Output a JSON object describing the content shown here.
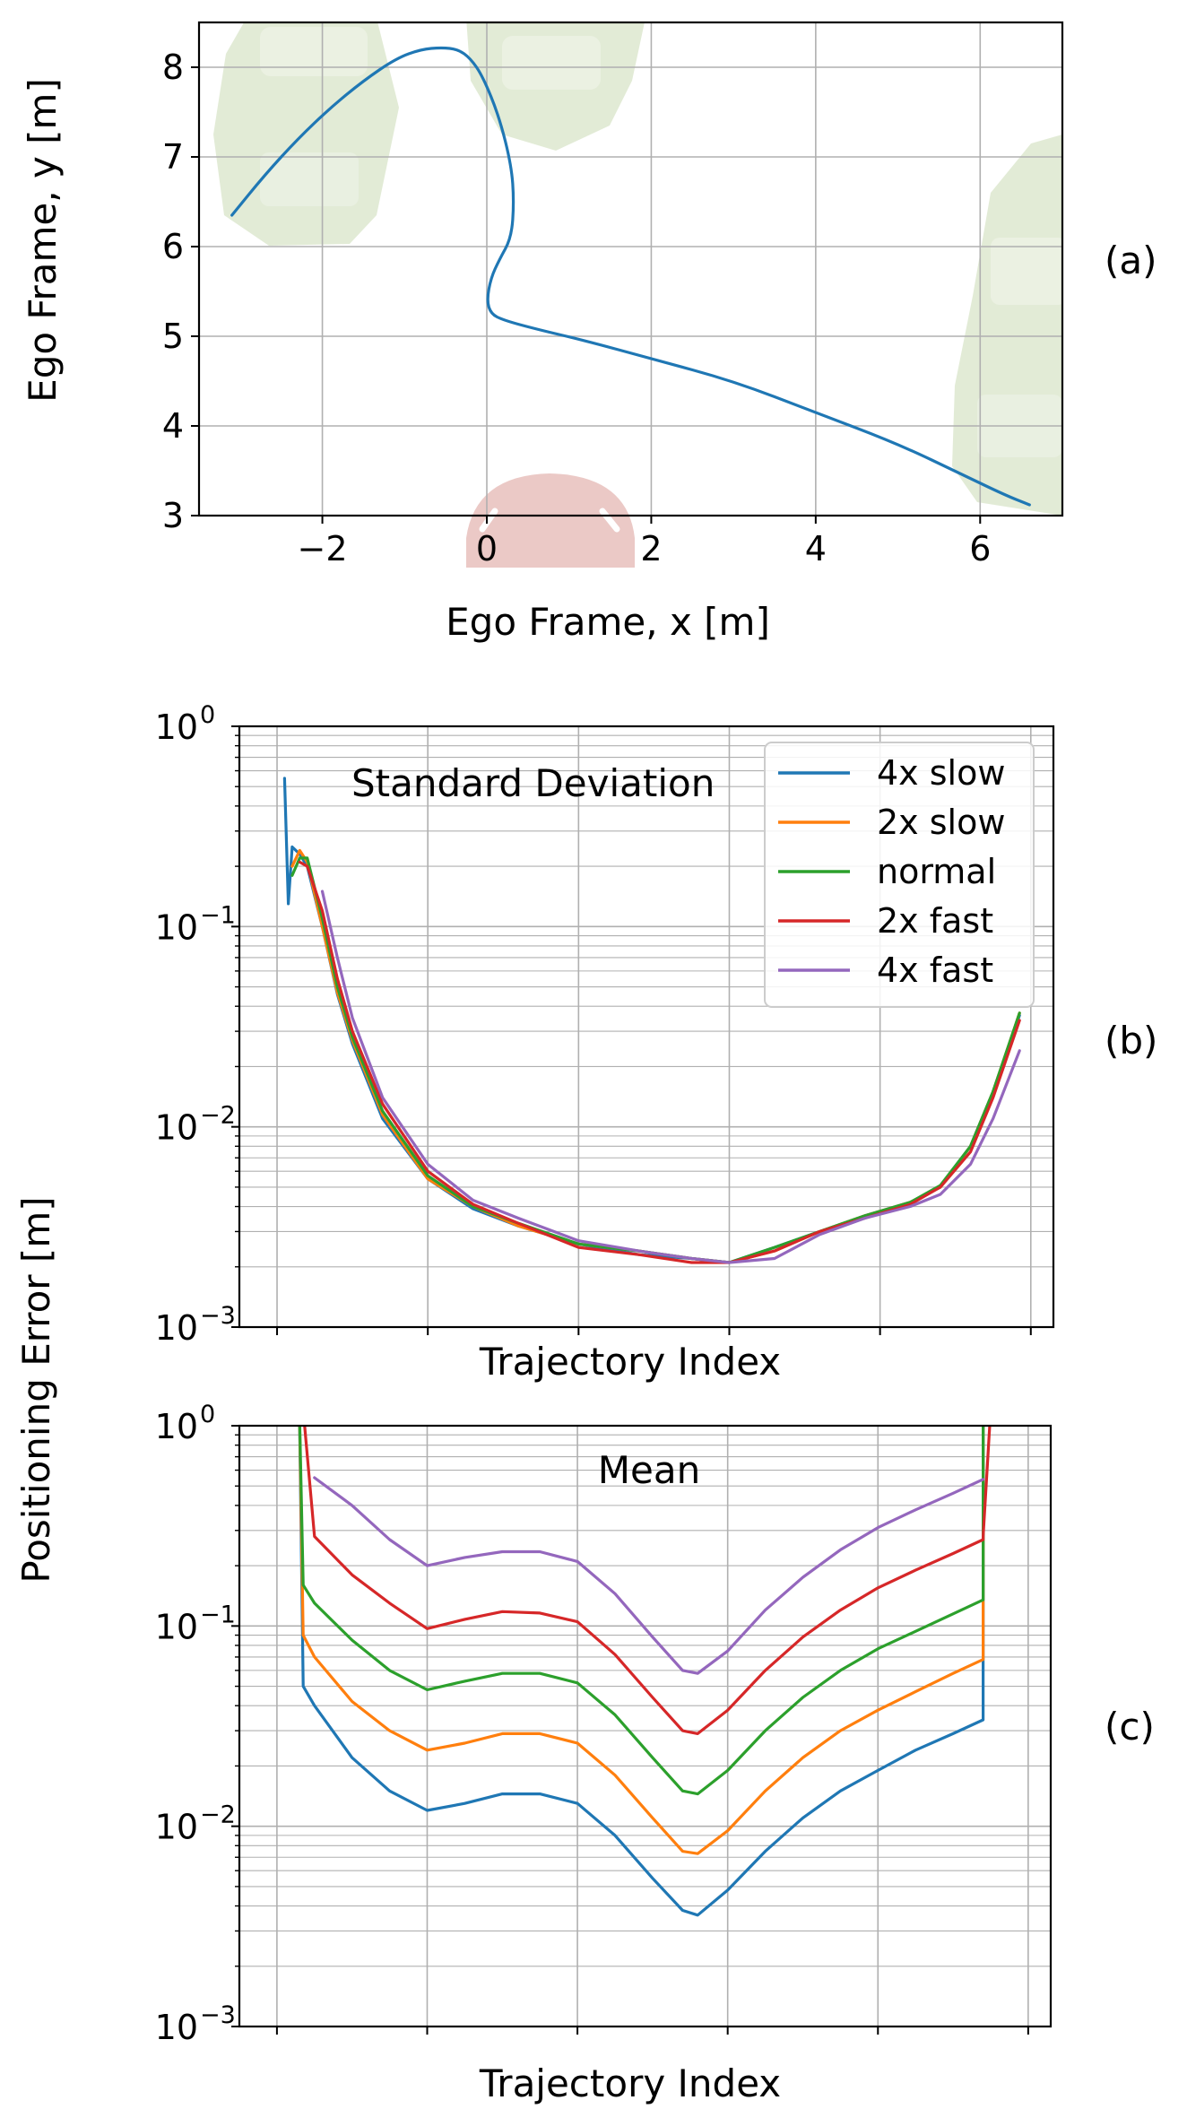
{
  "colors": {
    "4x slow": "#1f77b4",
    "2x slow": "#ff7f0e",
    "normal": "#2ca02c",
    "2x fast": "#d62728",
    "4x fast": "#9467bd",
    "background_vehicles": "#dde8cf",
    "ego_vehicle": "#ebc9c6"
  },
  "shared_ylabel": "Positioning Error [m]",
  "panels": {
    "a": {
      "tag": "(a)"
    },
    "b": {
      "tag": "(b)"
    },
    "c": {
      "tag": "(c)"
    }
  },
  "chart_data": [
    {
      "id": "a",
      "type": "line",
      "xlabel": "Ego Frame, x [m]",
      "ylabel": "Ego Frame, y [m]",
      "xlim": [
        -3.5,
        7
      ],
      "ylim": [
        3,
        8.5
      ],
      "xticks": [
        -2,
        0,
        2,
        4,
        6
      ],
      "xtick_labels": [
        "−2",
        "0",
        "2",
        "4",
        "6"
      ],
      "yticks": [
        3,
        4,
        5,
        6,
        7,
        8
      ],
      "ytick_labels": [
        "3",
        "4",
        "5",
        "6",
        "7",
        "8"
      ],
      "grid": true,
      "series": [
        {
          "color": "#1f77b4",
          "x": [
            -3.1,
            -2.7,
            -2.3,
            -1.9,
            -1.5,
            -1.1,
            -0.8,
            -0.55,
            -0.35,
            -0.2,
            -0.05,
            0.15,
            0.3,
            0.33,
            0.3,
            0.15,
            0.05,
            0.0,
            0.05,
            0.2,
            0.6,
            1.2,
            2.0,
            3.0,
            4.0,
            5.0,
            5.8,
            6.3,
            6.6
          ],
          "y": [
            6.35,
            6.8,
            7.2,
            7.55,
            7.85,
            8.1,
            8.2,
            8.22,
            8.2,
            8.1,
            7.9,
            7.45,
            6.9,
            6.5,
            6.1,
            5.85,
            5.65,
            5.4,
            5.25,
            5.18,
            5.08,
            4.95,
            4.75,
            4.5,
            4.15,
            3.8,
            3.45,
            3.23,
            3.12
          ]
        }
      ]
    },
    {
      "id": "b",
      "type": "line",
      "annotation": "Standard Deviation",
      "xlabel": "Trajectory Index",
      "yscale": "log",
      "ylim": [
        0.001,
        1
      ],
      "xlim": [
        -0.05,
        1.03
      ],
      "yticks": [
        0.001,
        0.01,
        0.1,
        1
      ],
      "ytick_labels": [
        "10",
        "10",
        "10",
        "10"
      ],
      "ytick_exponents": [
        "−3",
        "−2",
        "−1",
        "0"
      ],
      "xticks_unlabeled": [
        0,
        0.2,
        0.4,
        0.6,
        0.8,
        1.0
      ],
      "grid": true,
      "legend": {
        "placement": "top-right",
        "entries": [
          "4x slow",
          "2x slow",
          "normal",
          "2x fast",
          "4x fast"
        ]
      },
      "x": [
        0.01,
        0.02,
        0.03,
        0.04,
        0.06,
        0.08,
        0.1,
        0.14,
        0.2,
        0.26,
        0.32,
        0.4,
        0.48,
        0.55,
        0.6,
        0.66,
        0.72,
        0.78,
        0.84,
        0.88,
        0.92,
        0.95,
        0.985
      ],
      "series": [
        {
          "name": "4x slow",
          "color": "#1f77b4",
          "x0": 0.01,
          "extra_start": [
            [
              0.01,
              0.55
            ],
            [
              0.015,
              0.13
            ],
            [
              0.02,
              0.25
            ]
          ],
          "values": [
            0.55,
            0.25,
            0.23,
            0.2,
            0.1,
            0.046,
            0.026,
            0.011,
            0.0055,
            0.0039,
            0.0032,
            0.0026,
            0.0023,
            0.0022,
            0.0021,
            0.0025,
            0.003,
            0.0036,
            0.0042,
            0.005,
            0.008,
            0.015,
            0.036
          ]
        },
        {
          "name": "2x slow",
          "color": "#ff7f0e",
          "values": [
            null,
            0.2,
            0.24,
            0.21,
            0.1,
            0.047,
            0.027,
            0.0115,
            0.0055,
            0.004,
            0.0032,
            0.0026,
            0.0024,
            0.0022,
            0.0021,
            0.0024,
            0.003,
            0.0036,
            0.0042,
            0.005,
            0.008,
            0.015,
            0.037
          ]
        },
        {
          "name": "normal",
          "color": "#2ca02c",
          "values": [
            null,
            0.18,
            0.22,
            0.22,
            0.11,
            0.05,
            0.028,
            0.012,
            0.0057,
            0.004,
            0.0033,
            0.0026,
            0.0024,
            0.0022,
            0.0021,
            0.0025,
            0.003,
            0.0036,
            0.0042,
            0.0051,
            0.008,
            0.015,
            0.037
          ]
        },
        {
          "name": "2x fast",
          "color": "#d62728",
          "values": [
            null,
            null,
            0.21,
            0.2,
            0.12,
            0.055,
            0.03,
            0.013,
            0.006,
            0.0041,
            0.0033,
            0.0025,
            0.0023,
            0.0021,
            0.0021,
            0.0024,
            0.003,
            0.0035,
            0.0041,
            0.005,
            0.0075,
            0.014,
            0.034
          ]
        },
        {
          "name": "4x fast",
          "color": "#9467bd",
          "values": [
            null,
            null,
            null,
            null,
            0.15,
            0.07,
            0.035,
            0.014,
            0.0065,
            0.0043,
            0.0035,
            0.0027,
            0.0024,
            0.0022,
            0.0021,
            0.0022,
            0.0029,
            0.0035,
            0.004,
            0.0046,
            0.0065,
            0.011,
            0.024
          ]
        }
      ]
    },
    {
      "id": "c",
      "type": "line",
      "annotation": "Mean",
      "xlabel": "Trajectory Index",
      "yscale": "log",
      "ylim": [
        0.001,
        1
      ],
      "xlim": [
        -0.05,
        1.03
      ],
      "yticks": [
        0.001,
        0.01,
        0.1,
        1
      ],
      "ytick_labels": [
        "10",
        "10",
        "10",
        "10"
      ],
      "ytick_exponents": [
        "−3",
        "−2",
        "−1",
        "0"
      ],
      "xticks_unlabeled": [
        0,
        0.2,
        0.4,
        0.6,
        0.8,
        1.0
      ],
      "grid": true,
      "x": [
        0.03,
        0.035,
        0.05,
        0.1,
        0.15,
        0.2,
        0.25,
        0.3,
        0.35,
        0.4,
        0.45,
        0.5,
        0.54,
        0.56,
        0.6,
        0.65,
        0.7,
        0.75,
        0.8,
        0.85,
        0.9,
        0.94,
        0.94,
        0.95
      ],
      "series": [
        {
          "name": "4x slow",
          "color": "#1f77b4",
          "values": [
            1.2,
            0.05,
            0.04,
            0.022,
            0.015,
            0.012,
            0.013,
            0.0145,
            0.0145,
            0.013,
            0.009,
            0.0055,
            0.0038,
            0.0036,
            0.0048,
            0.0075,
            0.011,
            0.015,
            0.019,
            0.024,
            0.029,
            0.034,
            1.0,
            1.2
          ]
        },
        {
          "name": "2x slow",
          "color": "#ff7f0e",
          "values": [
            1.2,
            0.09,
            0.07,
            0.042,
            0.03,
            0.024,
            0.026,
            0.029,
            0.029,
            0.026,
            0.018,
            0.011,
            0.0075,
            0.0073,
            0.0095,
            0.015,
            0.022,
            0.03,
            0.038,
            0.047,
            0.058,
            0.068,
            1.0,
            1.2
          ]
        },
        {
          "name": "normal",
          "color": "#2ca02c",
          "values": [
            1.2,
            0.16,
            0.13,
            0.085,
            0.06,
            0.048,
            0.053,
            0.058,
            0.058,
            0.052,
            0.036,
            0.022,
            0.015,
            0.0145,
            0.019,
            0.03,
            0.044,
            0.06,
            0.077,
            0.094,
            0.115,
            0.135,
            1.0,
            1.2
          ]
        },
        {
          "name": "2x fast",
          "color": "#d62728",
          "values": [
            1.2,
            1.2,
            0.28,
            0.18,
            0.13,
            0.097,
            0.108,
            0.118,
            0.116,
            0.105,
            0.072,
            0.044,
            0.03,
            0.029,
            0.038,
            0.06,
            0.088,
            0.12,
            0.155,
            0.19,
            0.23,
            0.27,
            0.28,
            1.2
          ]
        },
        {
          "name": "4x fast",
          "color": "#9467bd",
          "values": [
            null,
            null,
            0.55,
            0.4,
            0.27,
            0.2,
            0.22,
            0.235,
            0.235,
            0.21,
            0.145,
            0.088,
            0.06,
            0.058,
            0.075,
            0.12,
            0.175,
            0.24,
            0.31,
            0.38,
            0.46,
            0.54,
            null,
            null
          ]
        }
      ]
    }
  ]
}
